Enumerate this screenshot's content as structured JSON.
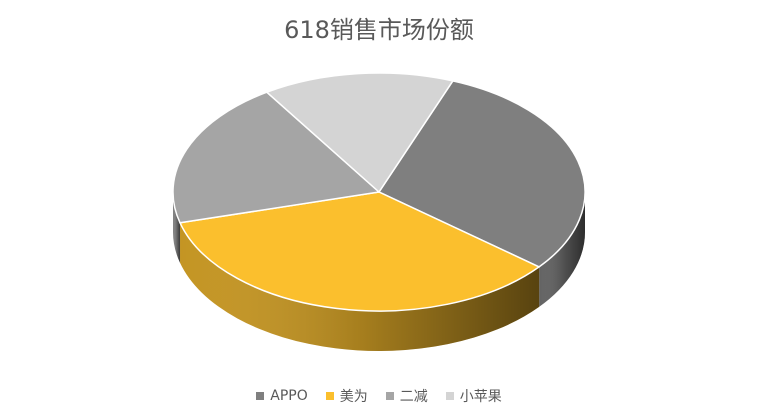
{
  "chart_data": {
    "type": "pie",
    "title": "618销售市场份额",
    "categories": [
      "APPO",
      "美为",
      "二减",
      "小苹果"
    ],
    "values": [
      30,
      35,
      20,
      15
    ],
    "colors": [
      "#7f7f7f",
      "#fbbf2d",
      "#a5a5a5",
      "#d4d4d4"
    ],
    "legend_position": "bottom"
  }
}
